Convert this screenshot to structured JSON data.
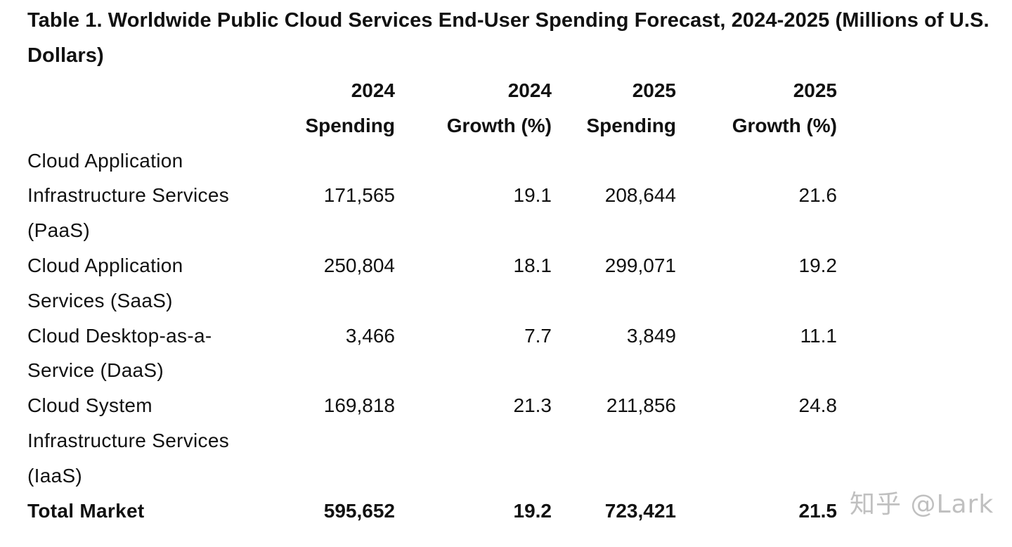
{
  "title": "Table 1. Worldwide Public Cloud Services End-User Spending Forecast, 2024-2025 (Millions of U.S. Dollars)",
  "header": {
    "col1": {
      "line1": "2024",
      "line2": "Spending"
    },
    "col2": {
      "line1": "2024",
      "line2": "Growth (%)"
    },
    "col3": {
      "line1": "2025",
      "line2": "Spending"
    },
    "col4": {
      "line1": "2025",
      "line2": "Growth (%)"
    }
  },
  "rows": [
    {
      "label": "Cloud Application Infrastructure Services (PaaS)",
      "spend_2024": "171,565",
      "growth_2024": "19.1",
      "spend_2025": "208,644",
      "growth_2025": "21.6"
    },
    {
      "label": "Cloud Application Services (SaaS)",
      "spend_2024": "250,804",
      "growth_2024": "18.1",
      "spend_2025": "299,071",
      "growth_2025": "19.2"
    },
    {
      "label": "Cloud Desktop-as-a-Service (DaaS)",
      "spend_2024": "3,466",
      "growth_2024": "7.7",
      "spend_2025": "3,849",
      "growth_2025": "11.1"
    },
    {
      "label": "Cloud System Infrastructure Services (IaaS)",
      "spend_2024": "169,818",
      "growth_2024": "21.3",
      "spend_2025": "211,856",
      "growth_2025": "24.8"
    }
  ],
  "total": {
    "label": "Total Market",
    "spend_2024": "595,652",
    "growth_2024": "19.2",
    "spend_2025": "723,421",
    "growth_2025": "21.5"
  },
  "watermark": "知乎 @Lark"
}
